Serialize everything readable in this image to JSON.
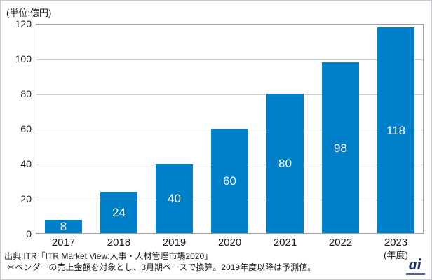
{
  "unit_label": "(単位:億円)",
  "chart_data": {
    "type": "bar",
    "title": "",
    "categories": [
      "2017",
      "2018",
      "2019",
      "2020",
      "2021",
      "2022",
      "2023"
    ],
    "values": [
      8,
      24,
      40,
      60,
      80,
      98,
      118
    ],
    "value_labels": [
      "8",
      "24",
      "40",
      "60",
      "80",
      "98",
      "118"
    ],
    "xlabel": "",
    "ylabel": "(単位:億円)",
    "x_axis_suffix": "(年度)",
    "ylim": [
      0,
      120
    ],
    "yticks": [
      0,
      20,
      40,
      60,
      80,
      100,
      120
    ],
    "grid": true,
    "legend_position": "none",
    "bar_color": "#0080C8",
    "value_label_color": "#ffffff"
  },
  "footer": {
    "source_line1": "出典:ITR「ITR Market View:人事・人材管理市場2020」",
    "source_line2": " ＊ベンダーの売上金額を対象とし、3月期ベースで換算。2019年度以降は予測値。",
    "logo_text": "ai"
  }
}
